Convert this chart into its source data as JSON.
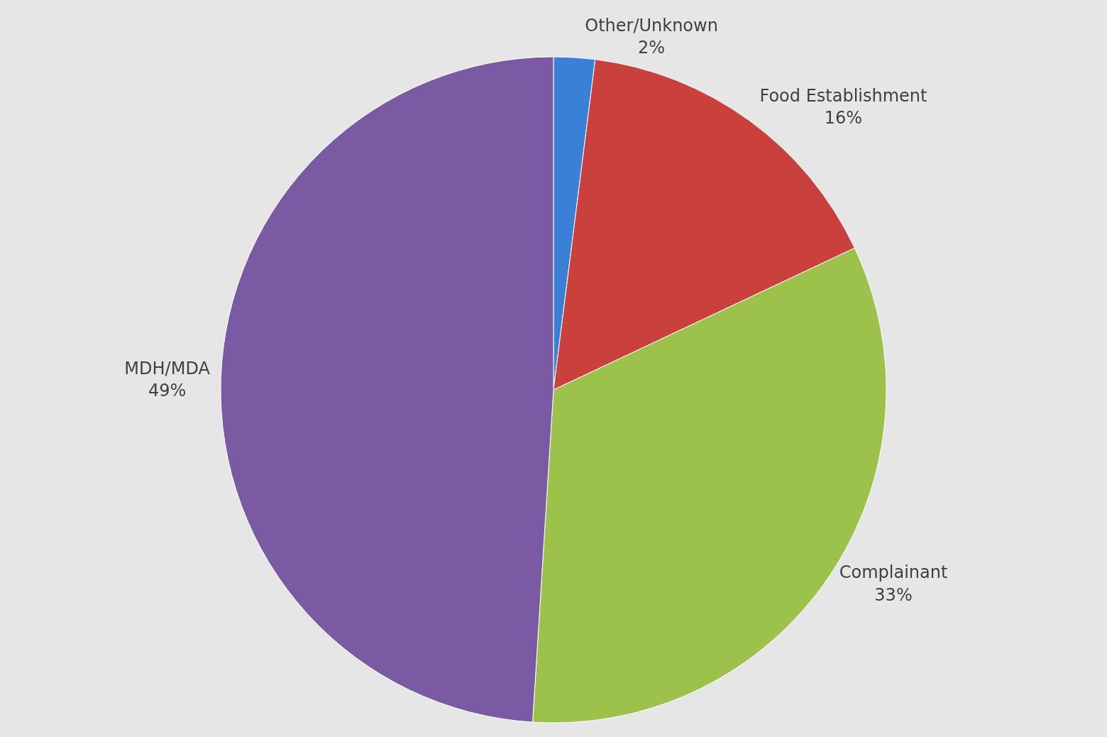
{
  "chart_data": {
    "type": "pie",
    "categories": [
      "Other/Unknown",
      "Food Establishment",
      "Complainant",
      "MDH/MDA"
    ],
    "values": [
      2,
      16,
      33,
      49
    ],
    "value_labels": [
      "2%",
      "16%",
      "33%",
      "49%"
    ],
    "colors": [
      "#3a80d6",
      "#c9403d",
      "#9cc24c",
      "#7a5aa3"
    ],
    "legend": false
  }
}
